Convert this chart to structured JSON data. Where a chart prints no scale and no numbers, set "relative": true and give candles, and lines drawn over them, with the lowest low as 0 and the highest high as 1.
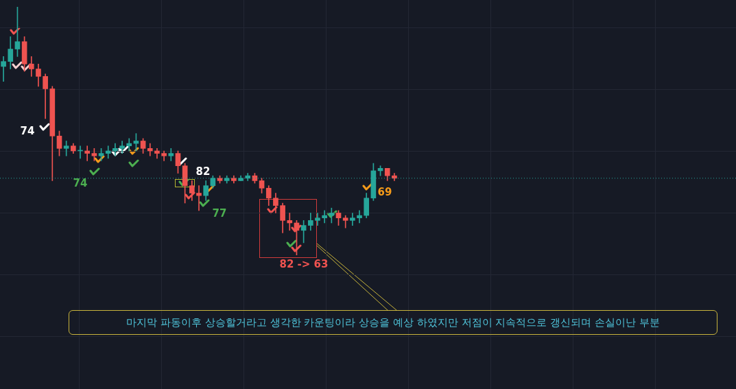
{
  "chart_data": {
    "type": "candlestick",
    "relative": true,
    "grid": true,
    "categories": [
      null,
      null,
      null,
      null,
      null,
      null,
      null,
      null,
      null,
      null,
      null,
      null,
      null,
      null,
      null,
      null,
      null,
      null,
      null,
      null,
      null,
      null,
      null,
      null,
      null,
      null,
      null,
      null,
      null,
      null,
      null,
      null,
      null,
      null,
      null,
      null,
      null,
      null,
      null,
      null,
      null,
      null,
      null,
      null,
      null,
      null,
      null,
      null,
      null,
      null,
      null,
      null,
      null,
      null,
      null,
      null,
      null
    ],
    "ohlc": [
      [
        0.76,
        0.8,
        0.7,
        0.78
      ],
      [
        0.78,
        0.88,
        0.75,
        0.83
      ],
      [
        0.83,
        1.0,
        0.8,
        0.86
      ],
      [
        0.86,
        0.88,
        0.74,
        0.77
      ],
      [
        0.77,
        0.8,
        0.72,
        0.75
      ],
      [
        0.75,
        0.77,
        0.68,
        0.72
      ],
      [
        0.72,
        0.73,
        0.55,
        0.67
      ],
      [
        0.67,
        0.68,
        0.3,
        0.48
      ],
      [
        0.48,
        0.5,
        0.4,
        0.43
      ],
      [
        0.43,
        0.46,
        0.4,
        0.44
      ],
      [
        0.44,
        0.45,
        0.41,
        0.42
      ],
      [
        0.42,
        0.44,
        0.39,
        0.42
      ],
      [
        0.42,
        0.44,
        0.38,
        0.41
      ],
      [
        0.41,
        0.43,
        0.38,
        0.4
      ],
      [
        0.4,
        0.43,
        0.38,
        0.41
      ],
      [
        0.41,
        0.44,
        0.39,
        0.42
      ],
      [
        0.42,
        0.45,
        0.4,
        0.43
      ],
      [
        0.43,
        0.46,
        0.41,
        0.44
      ],
      [
        0.44,
        0.47,
        0.42,
        0.45
      ],
      [
        0.45,
        0.49,
        0.42,
        0.46
      ],
      [
        0.46,
        0.47,
        0.41,
        0.43
      ],
      [
        0.43,
        0.45,
        0.4,
        0.42
      ],
      [
        0.42,
        0.43,
        0.39,
        0.41
      ],
      [
        0.41,
        0.42,
        0.38,
        0.4
      ],
      [
        0.4,
        0.43,
        0.38,
        0.41
      ],
      [
        0.41,
        0.42,
        0.33,
        0.36
      ],
      [
        0.36,
        0.37,
        0.21,
        0.28
      ],
      [
        0.28,
        0.3,
        0.22,
        0.25
      ],
      [
        0.25,
        0.28,
        0.18,
        0.24
      ],
      [
        0.24,
        0.3,
        0.22,
        0.28
      ],
      [
        0.28,
        0.32,
        0.27,
        0.31
      ],
      [
        0.31,
        0.32,
        0.29,
        0.3
      ],
      [
        0.3,
        0.32,
        0.29,
        0.31
      ],
      [
        0.31,
        0.32,
        0.29,
        0.3
      ],
      [
        0.3,
        0.32,
        0.3,
        0.31
      ],
      [
        0.31,
        0.33,
        0.3,
        0.32
      ],
      [
        0.32,
        0.33,
        0.29,
        0.3
      ],
      [
        0.3,
        0.31,
        0.25,
        0.27
      ],
      [
        0.27,
        0.28,
        0.2,
        0.23
      ],
      [
        0.23,
        0.25,
        0.17,
        0.2
      ],
      [
        0.2,
        0.21,
        0.09,
        0.14
      ],
      [
        0.14,
        0.17,
        0.1,
        0.13
      ],
      [
        0.13,
        0.14,
        0.0,
        0.1
      ],
      [
        0.1,
        0.14,
        0.05,
        0.12
      ],
      [
        0.12,
        0.17,
        0.1,
        0.14
      ],
      [
        0.14,
        0.17,
        0.12,
        0.15
      ],
      [
        0.15,
        0.18,
        0.13,
        0.16
      ],
      [
        0.16,
        0.19,
        0.13,
        0.17
      ],
      [
        0.17,
        0.18,
        0.12,
        0.15
      ],
      [
        0.15,
        0.16,
        0.11,
        0.14
      ],
      [
        0.14,
        0.17,
        0.12,
        0.15
      ],
      [
        0.15,
        0.18,
        0.13,
        0.16
      ],
      [
        0.16,
        0.25,
        0.15,
        0.23
      ],
      [
        0.23,
        0.37,
        0.22,
        0.34
      ],
      [
        0.34,
        0.36,
        0.32,
        0.35
      ],
      [
        0.35,
        0.35,
        0.3,
        0.32
      ],
      [
        0.32,
        0.33,
        0.3,
        0.31
      ]
    ],
    "colors": [
      "#26a69a",
      "#26a69a",
      "#26a69a",
      "#ef5350",
      "#ef5350",
      "#ef5350",
      "#ef5350",
      "#ef5350",
      "#ef5350",
      "#26a69a",
      "#ef5350",
      "#26a69a",
      "#ef5350",
      "#ef5350",
      "#26a69a",
      "#26a69a",
      "#26a69a",
      "#26a69a",
      "#26a69a",
      "#26a69a",
      "#ef5350",
      "#ef5350",
      "#ef5350",
      "#ef5350",
      "#26a69a",
      "#ef5350",
      "#ef5350",
      "#ef5350",
      "#ef5350",
      "#26a69a",
      "#26a69a",
      "#ef5350",
      "#26a69a",
      "#ef5350",
      "#26a69a",
      "#26a69a",
      "#ef5350",
      "#ef5350",
      "#ef5350",
      "#ef5350",
      "#ef5350",
      "#ef5350",
      "#ef5350",
      "#26a69a",
      "#26a69a",
      "#26a69a",
      "#26a69a",
      "#26a69a",
      "#ef5350",
      "#ef5350",
      "#26a69a",
      "#26a69a",
      "#26a69a",
      "#26a69a",
      "#26a69a",
      "#ef5350",
      "#ef5350"
    ],
    "ref_lines": [
      {
        "axis": "y",
        "value": 0.31,
        "color": "#26a69a",
        "line_style": "dotted"
      }
    ],
    "annotations": [
      "74",
      "74",
      "82",
      "77",
      "82 -> 63",
      "69",
      "마지막 파동이후 상승할거라고 생각한 카운팅이라 상승을 예상 하였지만 저점이 지속적으로 갱신되며 손실이난 부분"
    ]
  }
}
